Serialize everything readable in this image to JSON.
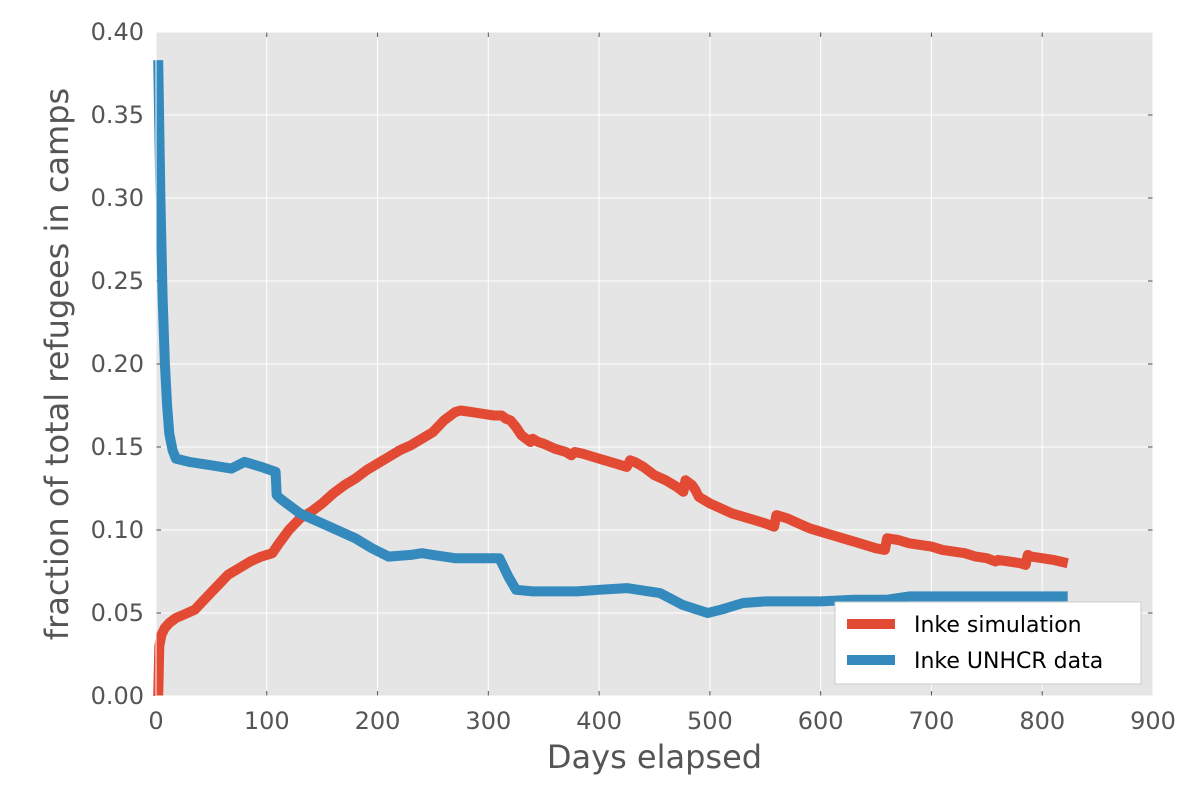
{
  "chart_data": {
    "type": "line",
    "title": "",
    "xlabel": "Days elapsed",
    "ylabel": "fraction of total refugees in camps",
    "xlim": [
      0,
      900
    ],
    "ylim": [
      0,
      0.4
    ],
    "xticks": [
      "0",
      "100",
      "200",
      "300",
      "400",
      "500",
      "600",
      "700",
      "800",
      "900"
    ],
    "yticks": [
      "0.00",
      "0.05",
      "0.10",
      "0.15",
      "0.20",
      "0.25",
      "0.30",
      "0.35",
      "0.40"
    ],
    "grid": true,
    "legend_position": "lower-right",
    "series": [
      {
        "name": "Inke simulation",
        "color": "#E24A33",
        "x": [
          2,
          3,
          5,
          8,
          12,
          18,
          25,
          35,
          45,
          55,
          65,
          75,
          85,
          95,
          105,
          110,
          120,
          130,
          140,
          150,
          160,
          170,
          180,
          190,
          200,
          210,
          220,
          230,
          240,
          250,
          260,
          270,
          275,
          285,
          295,
          305,
          312,
          316,
          320,
          325,
          330,
          338,
          340,
          345,
          350,
          360,
          370,
          375,
          378,
          385,
          395,
          405,
          415,
          425,
          428,
          432,
          440,
          450,
          460,
          470,
          476,
          478,
          484,
          487,
          490,
          500,
          510,
          520,
          530,
          540,
          550,
          558,
          560,
          570,
          580,
          590,
          600,
          610,
          620,
          630,
          640,
          650,
          658,
          660,
          670,
          680,
          690,
          700,
          710,
          720,
          730,
          740,
          750,
          758,
          760,
          770,
          780,
          785,
          787,
          790,
          800,
          810,
          823
        ],
        "y": [
          0.0,
          0.03,
          0.037,
          0.041,
          0.044,
          0.047,
          0.049,
          0.052,
          0.059,
          0.066,
          0.073,
          0.077,
          0.081,
          0.084,
          0.086,
          0.091,
          0.1,
          0.107,
          0.111,
          0.116,
          0.122,
          0.127,
          0.131,
          0.136,
          0.14,
          0.144,
          0.148,
          0.151,
          0.155,
          0.159,
          0.166,
          0.171,
          0.172,
          0.171,
          0.17,
          0.169,
          0.169,
          0.167,
          0.166,
          0.162,
          0.157,
          0.153,
          0.155,
          0.153,
          0.152,
          0.149,
          0.147,
          0.145,
          0.147,
          0.146,
          0.144,
          0.142,
          0.14,
          0.138,
          0.142,
          0.141,
          0.138,
          0.133,
          0.13,
          0.126,
          0.123,
          0.13,
          0.127,
          0.124,
          0.12,
          0.116,
          0.113,
          0.11,
          0.108,
          0.106,
          0.104,
          0.102,
          0.109,
          0.107,
          0.104,
          0.101,
          0.099,
          0.097,
          0.095,
          0.093,
          0.091,
          0.089,
          0.088,
          0.095,
          0.094,
          0.092,
          0.091,
          0.09,
          0.088,
          0.087,
          0.086,
          0.084,
          0.083,
          0.081,
          0.082,
          0.081,
          0.08,
          0.079,
          0.085,
          0.084,
          0.083,
          0.082,
          0.08
        ]
      },
      {
        "name": "Inke UNHCR data",
        "color": "#348ABD",
        "x": [
          2,
          4,
          6,
          8,
          10,
          12,
          15,
          18,
          30,
          50,
          68,
          80,
          95,
          108,
          109,
          112,
          120,
          130,
          140,
          160,
          180,
          195,
          210,
          230,
          240,
          250,
          270,
          290,
          305,
          310,
          318,
          325,
          340,
          360,
          380,
          400,
          425,
          445,
          455,
          475,
          498,
          510,
          530,
          550,
          570,
          600,
          630,
          660,
          680,
          700,
          730,
          760,
          790,
          823
        ],
        "y": [
          0.383,
          0.3,
          0.24,
          0.2,
          0.175,
          0.158,
          0.148,
          0.143,
          0.141,
          0.139,
          0.137,
          0.141,
          0.138,
          0.135,
          0.121,
          0.119,
          0.115,
          0.11,
          0.107,
          0.101,
          0.095,
          0.089,
          0.084,
          0.085,
          0.086,
          0.085,
          0.083,
          0.083,
          0.083,
          0.083,
          0.072,
          0.064,
          0.063,
          0.063,
          0.063,
          0.064,
          0.065,
          0.063,
          0.062,
          0.055,
          0.05,
          0.052,
          0.056,
          0.057,
          0.057,
          0.057,
          0.058,
          0.058,
          0.06,
          0.06,
          0.06,
          0.06,
          0.06,
          0.06
        ]
      }
    ]
  }
}
